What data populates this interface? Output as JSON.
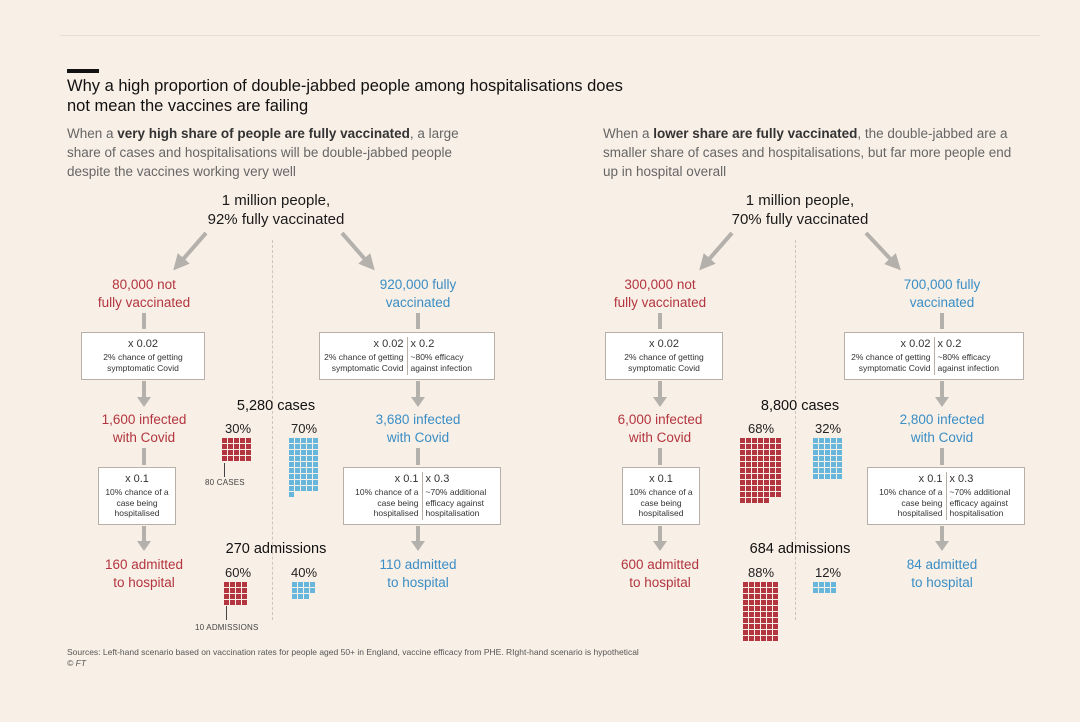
{
  "title": "Why a high proportion of double-jabbed people among hospitalisations does not mean the vaccines are failing",
  "colors": {
    "unvaccinated": "#b3353f",
    "vaccinated": "#3a8ec5",
    "background": "#f8efe6"
  },
  "left": {
    "subtitle_pre": "When a ",
    "subtitle_bold": "very high share of people are fully vaccinated",
    "subtitle_post": ", a large share of cases and hospitalisations will be double-jabbed people despite the vaccines working very well",
    "root_line1": "1 million people,",
    "root_line2": "92% fully vaccinated",
    "unvax_line1": "80,000 not",
    "unvax_line2": "fully vaccinated",
    "vax_line1": "920,000 fully",
    "vax_line2": "vaccinated",
    "box1_mult": "x 0.02",
    "box1_text": "2% chance of getting symptomatic Covid",
    "box1v_mult_a": "x 0.02",
    "box1v_text_a": "2% chance of getting symptomatic Covid",
    "box1v_mult_b": "x 0.2",
    "box1v_text_b": "~80% efficacy against infection",
    "unvax_infected_1": "1,600 infected",
    "unvax_infected_2": "with Covid",
    "vax_infected_1": "3,680 infected",
    "vax_infected_2": "with Covid",
    "cases_total": "5,280 cases",
    "cases_unvax_pct": "30%",
    "cases_vax_pct": "70%",
    "cases_unit_label": "80 CASES",
    "box2_mult": "x 0.1",
    "box2_text": "10% chance of a case being hospitalised",
    "box2v_mult_a": "x 0.1",
    "box2v_text_a": "10% chance of a case being hospitalised",
    "box2v_mult_b": "x 0.3",
    "box2v_text_b": "~70% additional efficacy against hospitalisation",
    "unvax_admitted_1": "160 admitted",
    "unvax_admitted_2": "to hospital",
    "vax_admitted_1": "110 admitted",
    "vax_admitted_2": "to hospital",
    "admissions_total": "270 admissions",
    "adm_unvax_pct": "60%",
    "adm_vax_pct": "40%",
    "adm_unit_label": "10 ADMISSIONS"
  },
  "right": {
    "subtitle_pre": "When a ",
    "subtitle_bold": "lower share are fully vaccinated",
    "subtitle_post": ", the double-jabbed are a smaller share of cases and hospitalisations, but far more people end up in hospital overall",
    "root_line1": "1 million people,",
    "root_line2": "70% fully vaccinated",
    "unvax_line1": "300,000 not",
    "unvax_line2": "fully vaccinated",
    "vax_line1": "700,000 fully",
    "vax_line2": "vaccinated",
    "box1_mult": "x 0.02",
    "box1_text": "2% chance of getting symptomatic Covid",
    "box1v_mult_a": "x 0.02",
    "box1v_text_a": "2% chance of getting symptomatic Covid",
    "box1v_mult_b": "x 0.2",
    "box1v_text_b": "~80% efficacy against infection",
    "unvax_infected_1": "6,000 infected",
    "unvax_infected_2": "with Covid",
    "vax_infected_1": "2,800 infected",
    "vax_infected_2": "with Covid",
    "cases_total": "8,800 cases",
    "cases_unvax_pct": "68%",
    "cases_vax_pct": "32%",
    "box2_mult": "x 0.1",
    "box2_text": "10% chance of a case being hospitalised",
    "box2v_mult_a": "x 0.1",
    "box2v_text_a": "10% chance of a case being hospitalised",
    "box2v_mult_b": "x 0.3",
    "box2v_text_b": "~70% additional efficacy against hospitalisation",
    "unvax_admitted_1": "600 admitted",
    "unvax_admitted_2": "to hospital",
    "vax_admitted_1": "84 admitted",
    "vax_admitted_2": "to hospital",
    "admissions_total": "684 admissions",
    "adm_unvax_pct": "88%",
    "adm_vax_pct": "12%"
  },
  "squares": {
    "left_cases_unvax": 20,
    "left_cases_vax": 46,
    "left_adm_unvax": 16,
    "left_adm_vax": 11,
    "right_cases_unvax": 75,
    "right_cases_vax": 35,
    "right_adm_unvax": 60,
    "right_adm_vax": 8
  },
  "footer_sources": "Sources: Left-hand scenario based on vaccination rates for people aged 50+ in England, vaccine efficacy from PHE. RIght-hand scenario is hypothetical",
  "footer_copyright": "© FT"
}
